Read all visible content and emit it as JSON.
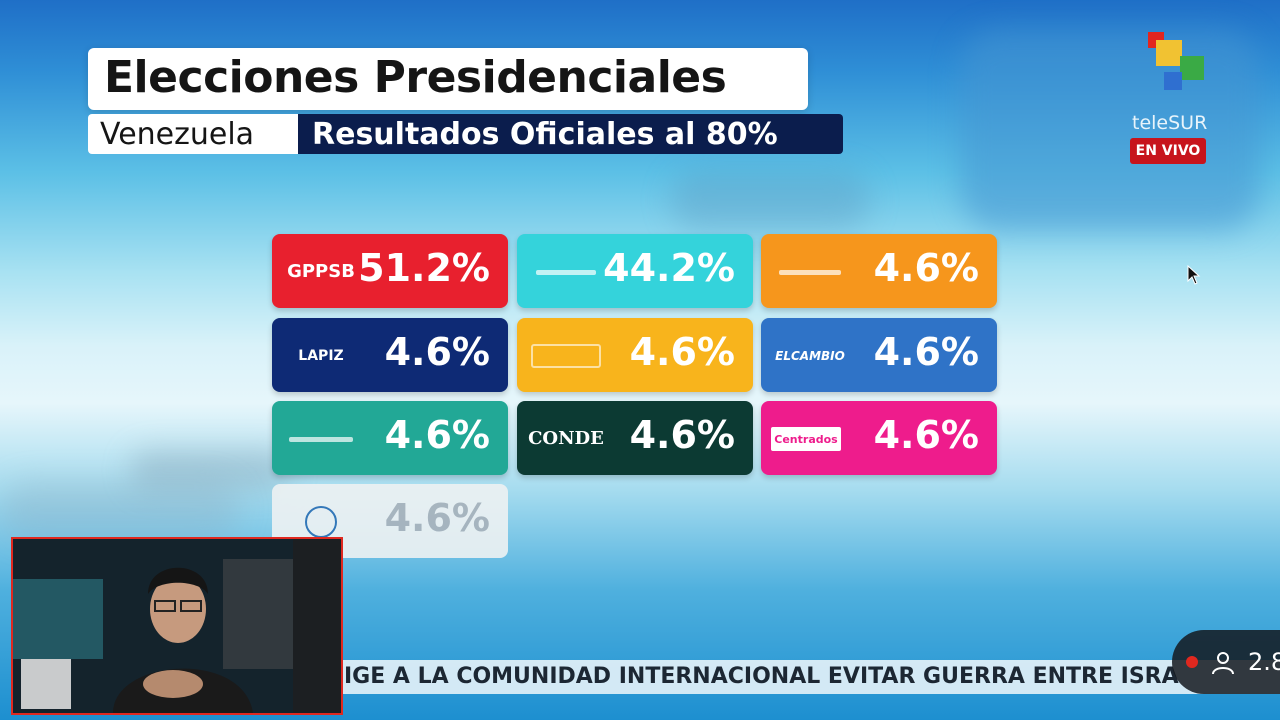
{
  "header": {
    "title": "Elecciones Presidenciales",
    "subtitle_left": "Venezuela",
    "subtitle_right": "Resultados Oficiales al 80%"
  },
  "broadcaster": {
    "name": "teleSUR",
    "live_badge": "EN VIVO"
  },
  "results": [
    {
      "logo": "GPPSB",
      "logo_color": "#ffffff",
      "pct": "51.2%",
      "bg": "#e8202e"
    },
    {
      "logo": "",
      "logo_color": "#ffffff",
      "pct": "44.2%",
      "bg": "#34d3db"
    },
    {
      "logo": "",
      "logo_color": "#ffffff",
      "pct": "4.6%",
      "bg": "#f6961c"
    },
    {
      "logo": "LAPIZ",
      "logo_color": "#ffffff",
      "pct": "4.6%",
      "bg": "#0e2a75"
    },
    {
      "logo": "",
      "logo_color": "#ffffff",
      "pct": "4.6%",
      "bg": "#f8b41c"
    },
    {
      "logo": "ELCAMBIO",
      "logo_color": "#ffffff",
      "pct": "4.6%",
      "bg": "#2f73c7"
    },
    {
      "logo": "",
      "logo_color": "#ffffff",
      "pct": "4.6%",
      "bg": "#22a896"
    },
    {
      "logo": "CONDE",
      "logo_color": "#ffffff",
      "pct": "4.6%",
      "bg": "#0c3a33"
    },
    {
      "logo": "Centrados",
      "logo_color": "#ffffff",
      "pct": "4.6%",
      "bg": "#ee1c8c"
    },
    {
      "logo": "",
      "logo_color": "#2a6fb4",
      "pct": "4.6%",
      "bg": "#eef2f3"
    }
  ],
  "ticker": {
    "text": "IGE A LA COMUNIDAD INTERNACIONAL EVITAR GUERRA ENTRE ISRA",
    "viewers": "2.8"
  },
  "icons": {
    "cursor": "mouse-pointer-icon",
    "viewers": "user-icon"
  }
}
